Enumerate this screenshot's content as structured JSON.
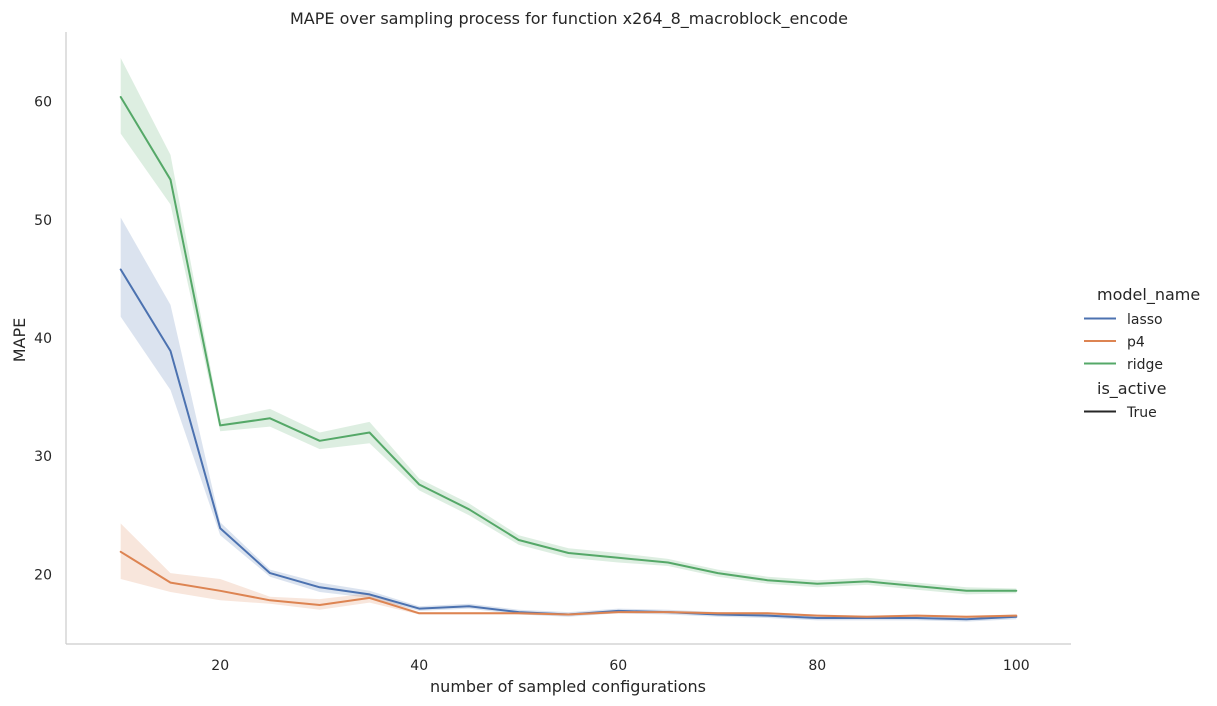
{
  "chart_data": {
    "type": "line",
    "title": "MAPE over sampling process for function x264_8_macroblock_encode",
    "xlabel": "number of sampled configurations",
    "ylabel": "MAPE",
    "xlim": [
      4.5,
      105.5
    ],
    "ylim": [
      14.1,
      65.9
    ],
    "xticks": [
      20,
      40,
      60,
      80,
      100
    ],
    "yticks": [
      20,
      30,
      40,
      50,
      60
    ],
    "grid": false,
    "legend": {
      "placement": "right",
      "title": "model_name",
      "style_title": "is_active",
      "style_entries": [
        "True"
      ]
    },
    "x": [
      10,
      15,
      20,
      25,
      30,
      35,
      40,
      45,
      50,
      55,
      60,
      65,
      70,
      75,
      80,
      85,
      90,
      95,
      100
    ],
    "series": [
      {
        "name": "lasso",
        "color": "#4c72b0",
        "values": [
          45.8,
          38.9,
          23.9,
          20.1,
          18.9,
          18.3,
          17.1,
          17.3,
          16.8,
          16.6,
          16.9,
          16.8,
          16.6,
          16.5,
          16.3,
          16.3,
          16.3,
          16.2,
          16.4
        ],
        "lower": [
          41.8,
          35.6,
          23.3,
          19.8,
          18.5,
          18.0,
          16.9,
          17.1,
          16.6,
          16.4,
          16.7,
          16.6,
          16.4,
          16.3,
          16.1,
          16.1,
          16.1,
          16.0,
          16.2
        ],
        "upper": [
          50.2,
          42.8,
          24.4,
          20.4,
          19.3,
          18.6,
          17.3,
          17.5,
          17.0,
          16.8,
          17.1,
          17.0,
          16.8,
          16.7,
          16.5,
          16.5,
          16.5,
          16.4,
          16.6
        ]
      },
      {
        "name": "p4",
        "color": "#dd8452",
        "values": [
          21.9,
          19.3,
          18.6,
          17.8,
          17.4,
          18.0,
          16.7,
          16.7,
          16.7,
          16.6,
          16.8,
          16.8,
          16.7,
          16.7,
          16.5,
          16.4,
          16.5,
          16.4,
          16.5
        ],
        "lower": [
          19.6,
          18.5,
          17.8,
          17.5,
          17.0,
          17.6,
          16.6,
          16.6,
          16.6,
          16.5,
          16.7,
          16.7,
          16.6,
          16.6,
          16.4,
          16.3,
          16.4,
          16.3,
          16.4
        ],
        "upper": [
          24.3,
          20.1,
          19.6,
          18.1,
          17.9,
          18.4,
          16.8,
          16.8,
          16.8,
          16.7,
          16.9,
          16.9,
          16.8,
          16.8,
          16.6,
          16.5,
          16.6,
          16.5,
          16.6
        ]
      },
      {
        "name": "ridge",
        "color": "#55a868",
        "values": [
          60.4,
          53.4,
          32.6,
          33.2,
          31.3,
          32.0,
          27.6,
          25.5,
          22.9,
          21.8,
          21.4,
          21.0,
          20.1,
          19.5,
          19.2,
          19.4,
          19.0,
          18.6,
          18.6
        ],
        "lower": [
          57.3,
          51.3,
          32.1,
          32.5,
          30.6,
          31.1,
          27.1,
          25.0,
          22.5,
          21.4,
          21.0,
          20.7,
          19.8,
          19.2,
          18.9,
          19.1,
          18.7,
          18.3,
          18.4
        ],
        "upper": [
          63.7,
          55.5,
          33.1,
          34.0,
          32.0,
          32.9,
          28.1,
          26.0,
          23.3,
          22.2,
          21.8,
          21.3,
          20.4,
          19.8,
          19.5,
          19.7,
          19.3,
          18.9,
          18.8
        ]
      }
    ]
  }
}
